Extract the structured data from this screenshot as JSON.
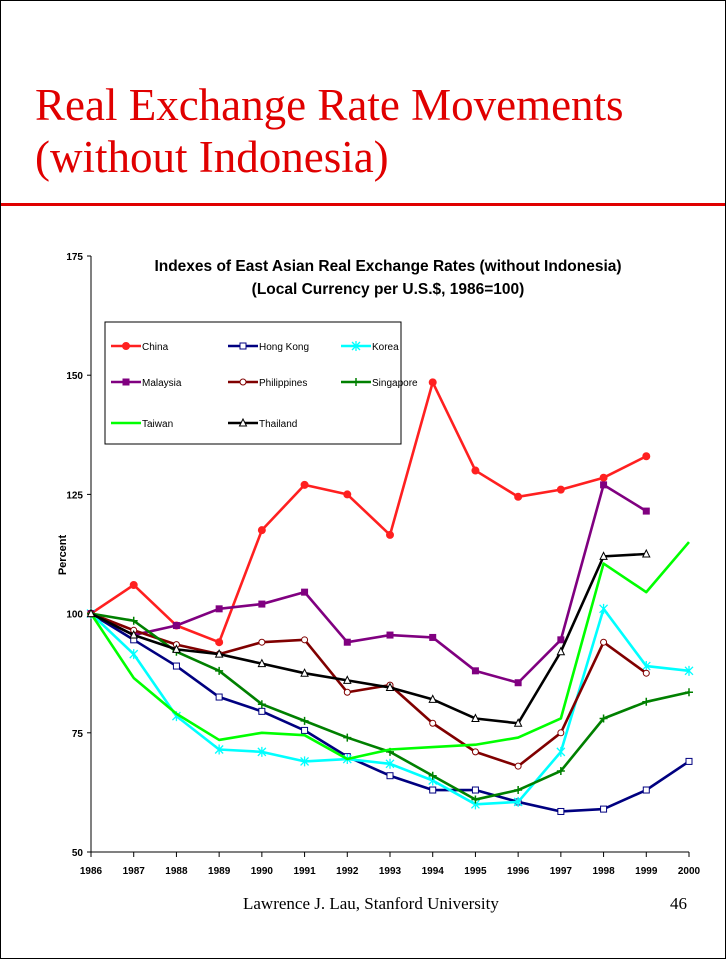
{
  "slide": {
    "title_line1": "Real Exchange Rate Movements",
    "title_line2": "(without Indonesia)",
    "footer_author": "Lawrence J. Lau, Stanford University",
    "page_number": "46"
  },
  "chart_data": {
    "type": "line",
    "title": "Indexes of East Asian Real Exchange Rates (without Indonesia)",
    "subtitle": "(Local Currency per U.S.$, 1986=100)",
    "ylabel": "Percent",
    "xlabel": "",
    "ylim": [
      50,
      175
    ],
    "yticks": [
      50,
      75,
      100,
      125,
      150,
      175
    ],
    "grid": false,
    "legend_position": "top-left",
    "x": [
      "1986",
      "1987",
      "1988",
      "1989",
      "1990",
      "1991",
      "1992",
      "1993",
      "1994",
      "1995",
      "1996",
      "1997",
      "1998",
      "1999",
      "2000"
    ],
    "series": [
      {
        "name": "China",
        "color": "#ff2020",
        "marker": "circle-filled",
        "values": [
          100,
          106,
          97.5,
          94,
          117.5,
          127,
          125,
          116.5,
          148.5,
          130,
          124.5,
          126,
          128.5,
          133,
          null
        ]
      },
      {
        "name": "Hong Kong",
        "color": "#000080",
        "marker": "square-open",
        "values": [
          100,
          94.5,
          89,
          82.5,
          79.5,
          75.5,
          70,
          66,
          63,
          63,
          60.5,
          58.5,
          59,
          63,
          69
        ]
      },
      {
        "name": "Korea",
        "color": "#00ffff",
        "marker": "asterisk",
        "values": [
          100,
          91.5,
          78.5,
          71.5,
          71,
          69,
          69.5,
          68.5,
          65,
          60,
          60.5,
          71,
          101,
          89,
          88
        ]
      },
      {
        "name": "Malaysia",
        "color": "#800080",
        "marker": "square-filled",
        "values": [
          100,
          95.5,
          97.5,
          101,
          102,
          104.5,
          94,
          95.5,
          95,
          88,
          85.5,
          94.5,
          127,
          121.5,
          null
        ]
      },
      {
        "name": "Philippines",
        "color": "#800000",
        "marker": "circle-open",
        "values": [
          100,
          96.5,
          93.5,
          91.5,
          94,
          94.5,
          83.5,
          85,
          77,
          71,
          68,
          75,
          94,
          87.5,
          null
        ]
      },
      {
        "name": "Singapore",
        "color": "#008000",
        "marker": "plus",
        "values": [
          100,
          98.5,
          92,
          88,
          81,
          77.5,
          74,
          71,
          66,
          61,
          63,
          67,
          78,
          81.5,
          83.5
        ]
      },
      {
        "name": "Taiwan",
        "color": "#00ff00",
        "marker": "none",
        "values": [
          100,
          86.5,
          79,
          73.5,
          75,
          74.5,
          69.5,
          71.5,
          72,
          72.5,
          74,
          78,
          110.5,
          104.5,
          115
        ]
      },
      {
        "name": "Thailand",
        "color": "#000000",
        "marker": "triangle-open",
        "values": [
          100,
          95.5,
          92.5,
          91.5,
          89.5,
          87.5,
          86,
          84.5,
          82,
          78,
          77,
          92,
          112,
          112.5,
          null
        ]
      }
    ]
  }
}
